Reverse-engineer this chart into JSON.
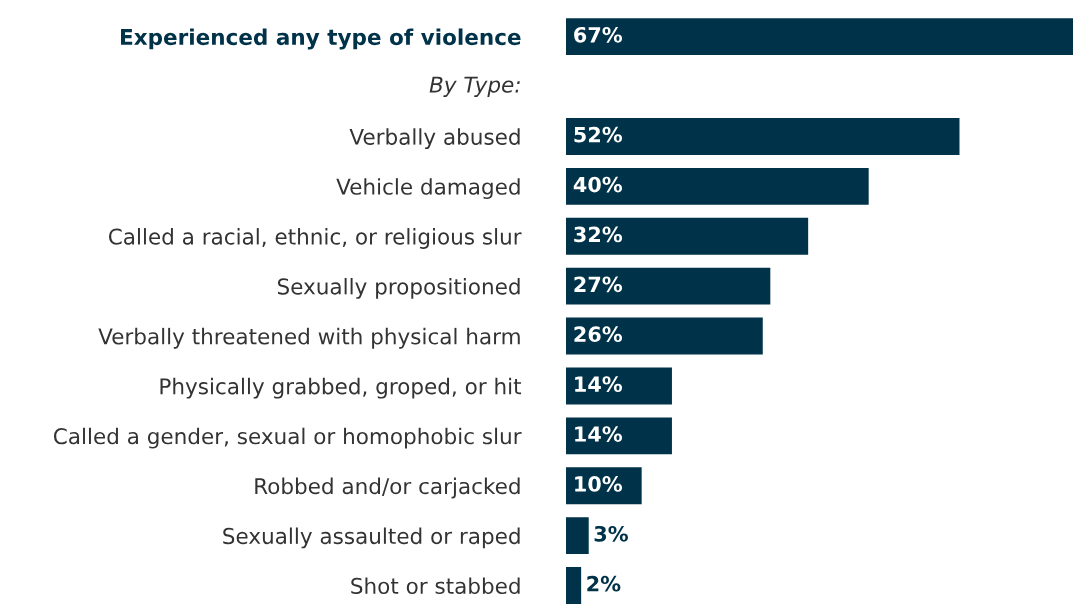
{
  "chart_data": {
    "type": "bar",
    "orientation": "horizontal",
    "categories": [
      "Experienced any type of violence",
      null,
      "Verbally abused",
      "Vehicle damaged",
      "Called a racial, ethnic, or religious slur",
      "Sexually propositioned",
      "Verbally threatened with physical harm",
      "Physically grabbed, groped, or hit",
      "Called a gender, sexual or homophobic slur",
      "Robbed and/or carjacked",
      "Sexually assaulted or raped",
      "Shot or stabbed"
    ],
    "values": [
      67,
      null,
      52,
      40,
      32,
      27,
      26,
      14,
      14,
      10,
      3,
      2
    ],
    "value_labels": [
      "67%",
      null,
      "52%",
      "40%",
      "32%",
      "27%",
      "26%",
      "14%",
      "14%",
      "10%",
      "3%",
      "2%"
    ],
    "color": "#003349",
    "annotations": [
      "By Type:"
    ]
  }
}
